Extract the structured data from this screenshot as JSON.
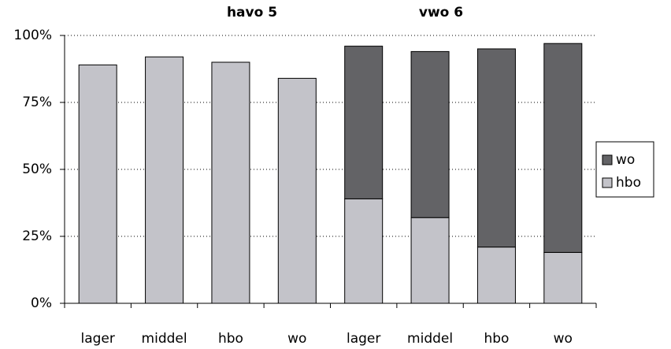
{
  "chart_data": {
    "type": "stacked_bar",
    "groups": [
      "havo 5",
      "vwo 6"
    ],
    "categories": [
      "lager",
      "middel",
      "hbo",
      "wo",
      "lager",
      "middel",
      "hbo",
      "wo"
    ],
    "series": [
      {
        "name": "hbo",
        "color": "#c3c3c9",
        "values": [
          89,
          92,
          90,
          84,
          39,
          32,
          21,
          19
        ]
      },
      {
        "name": "wo",
        "color": "#636366",
        "values": [
          0,
          0,
          0,
          0,
          57,
          62,
          74,
          78
        ]
      }
    ],
    "ylim": [
      0,
      100
    ],
    "yticks": [
      {
        "value": 0,
        "label": "0%"
      },
      {
        "value": 25,
        "label": "25%"
      },
      {
        "value": 50,
        "label": "50%"
      },
      {
        "value": 75,
        "label": "75%"
      },
      {
        "value": 100,
        "label": "100%"
      }
    ],
    "grid": true,
    "legend": "right"
  }
}
